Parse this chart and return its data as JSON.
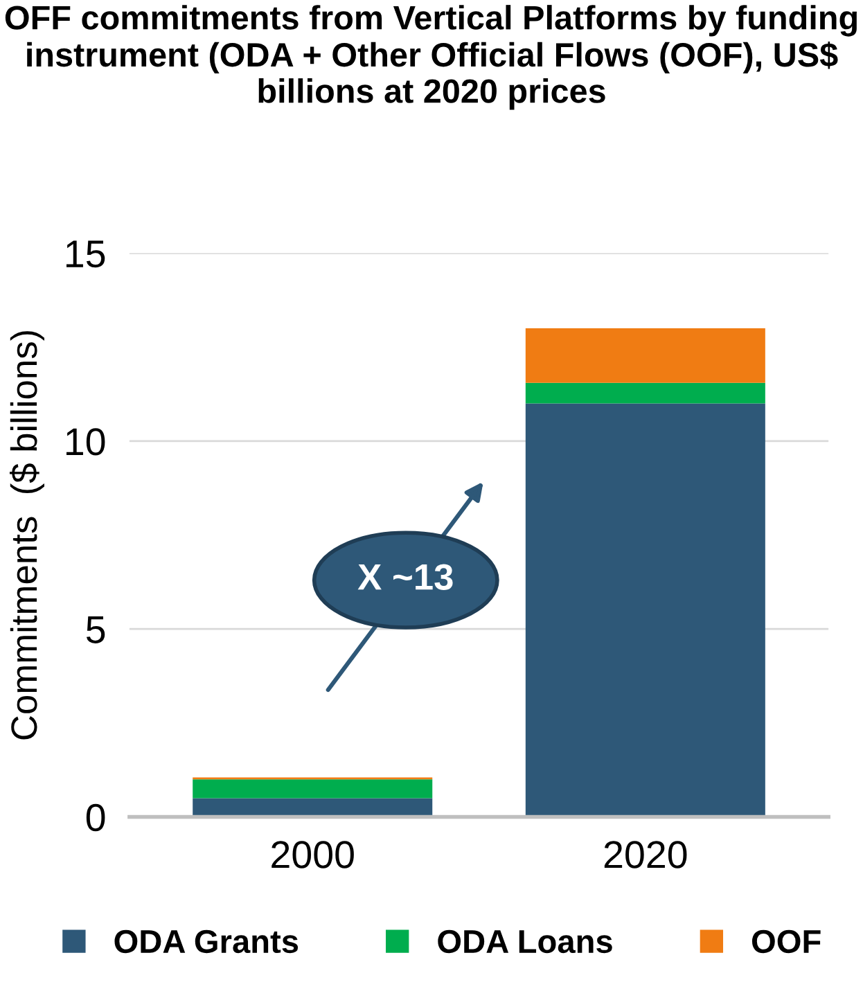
{
  "chart_data": {
    "type": "bar",
    "title": "OFF commitments from Vertical Platforms by funding instrument (ODA + Other Official Flows (OOF), US$ billions at 2020 prices",
    "ylabel": "Commitments  ($ billions)",
    "categories": [
      "2000",
      "2020"
    ],
    "stacked": true,
    "series": [
      {
        "name": "ODA Grants",
        "color": "#2e5878",
        "values": [
          0.5,
          11.0
        ]
      },
      {
        "name": "ODA Loans",
        "color": "#00ad4e",
        "values": [
          0.5,
          0.55
        ]
      },
      {
        "name": "OOF",
        "color": "#f07c13",
        "values": [
          0.05,
          1.45
        ]
      }
    ],
    "ylim": [
      0,
      15
    ],
    "yticks": [
      0,
      5,
      10,
      15
    ],
    "grid": "y",
    "legend": "bottom",
    "annotations": [
      "X ~13"
    ]
  }
}
